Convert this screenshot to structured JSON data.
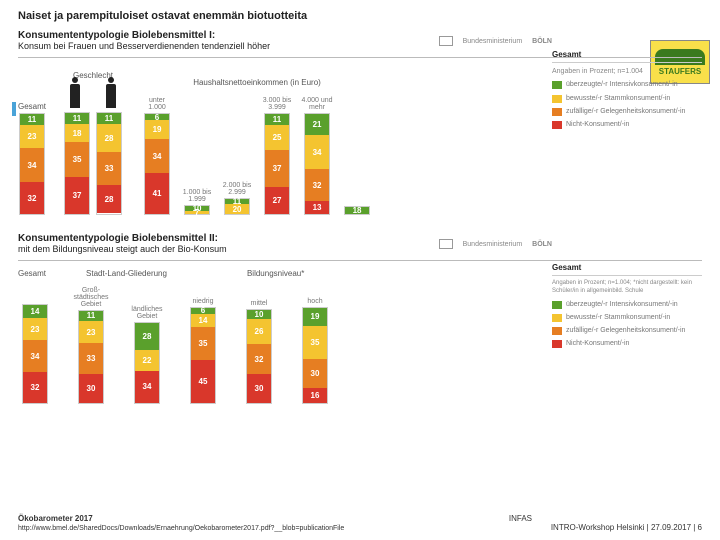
{
  "title": "Naiset ja parempituloiset ostavat enemmän biotuotteita",
  "logo_text": "STAUFERS",
  "colors": {
    "green": "#5aa02c",
    "yellow": "#f4c430",
    "orange": "#e67e22",
    "red": "#d9372b",
    "bg": "#ffffff"
  },
  "panel1": {
    "heading": "Konsumententypologie Biolebensmittel I:",
    "subheading": "Konsum bei Frauen und Besserverdienenden tendenziell höher",
    "gesamt_label": "Gesamt",
    "geschlecht_label": "Geschlecht",
    "income_label": "Haushaltsnettoeinkommen\n(in Euro)",
    "legend_title": "Gesamt",
    "legend_sub": "Angaben in Prozent; n=1.004",
    "legend_items": [
      {
        "label": "überzeugte/-r Intensivkonsument/-in",
        "color": "#5aa02c"
      },
      {
        "label": "bewusste/-r Stammkonsument/-in",
        "color": "#f4c430"
      },
      {
        "label": "zufällige/-r Gelegenheitskonsument/-in",
        "color": "#e67e22"
      },
      {
        "label": "Nicht-Konsument/-in",
        "color": "#d9372b"
      }
    ],
    "columns": [
      {
        "label": "",
        "values": [
          11,
          23,
          34,
          32
        ]
      },
      {
        "label": "",
        "values": [
          11,
          18,
          35,
          37
        ]
      },
      {
        "label": "",
        "values": [
          11,
          28,
          33,
          28
        ]
      },
      {
        "label": "unter 1.000",
        "values": [
          6,
          19,
          34,
          41
        ]
      },
      {
        "label": "1.000 bis 1.999",
        "values": [
          10,
          7,
          null,
          null
        ],
        "short": true
      },
      {
        "label": "2.000 bis 2.999",
        "values": [
          11,
          20,
          null,
          null
        ],
        "short": true
      },
      {
        "label": "3.000 bis 3.999",
        "values": [
          11,
          25,
          37,
          27
        ]
      },
      {
        "label": "4.000 und mehr",
        "values": [
          21,
          34,
          32,
          13
        ]
      },
      {
        "label": "",
        "values": [
          18,
          null,
          null,
          null
        ],
        "tiny": true
      }
    ]
  },
  "panel2": {
    "heading": "Konsumententypologie Biolebensmittel II:",
    "subheading": "mit dem Bildungsniveau steigt auch der Bio-Konsum",
    "gesamt_label": "Gesamt",
    "stadt_label": "Stadt-Land-Gliederung",
    "bildung_label": "Bildungsniveau*",
    "legend_title": "Gesamt",
    "legend_sub": "Angaben in Prozent; n=1.004; *nicht dargestellt: kein Schüler/in in allgemeinbild. Schule",
    "legend_items": [
      {
        "label": "überzeugte/-r Intensivkonsument/-in",
        "color": "#5aa02c"
      },
      {
        "label": "bewusste/-r Stammkonsument/-in",
        "color": "#f4c430"
      },
      {
        "label": "zufällige/-r Gelegenheitskonsument/-in",
        "color": "#e67e22"
      },
      {
        "label": "Nicht-Konsument/-in",
        "color": "#d9372b"
      }
    ],
    "sub1": "Groß-städtisches Gebiet",
    "sub2": "ländliches Gebiet",
    "sub3": "niedrig",
    "sub4": "mittel",
    "sub5": "hoch",
    "columns": [
      {
        "label": "",
        "values": [
          14,
          23,
          34,
          32
        ]
      },
      {
        "label": "",
        "values": [
          11,
          23,
          33,
          30
        ]
      },
      {
        "label": "",
        "values": [
          28,
          22,
          null,
          34
        ],
        "gap": true
      },
      {
        "label": "",
        "values": [
          6,
          14,
          35,
          45
        ]
      },
      {
        "label": "",
        "values": [
          10,
          26,
          32,
          30
        ]
      },
      {
        "label": "",
        "values": [
          19,
          35,
          30,
          16
        ]
      }
    ]
  },
  "footer": {
    "source": "Ökobarometer 2017",
    "infas": "INFAS",
    "url": "http://www.bmel.de/SharedDocs/Downloads/Ernaehrung/Oekobarometer2017.pdf?__blob=publicationFile",
    "right": "INTRO-Workshop Helsinki | 27.09.2017 | 6"
  }
}
